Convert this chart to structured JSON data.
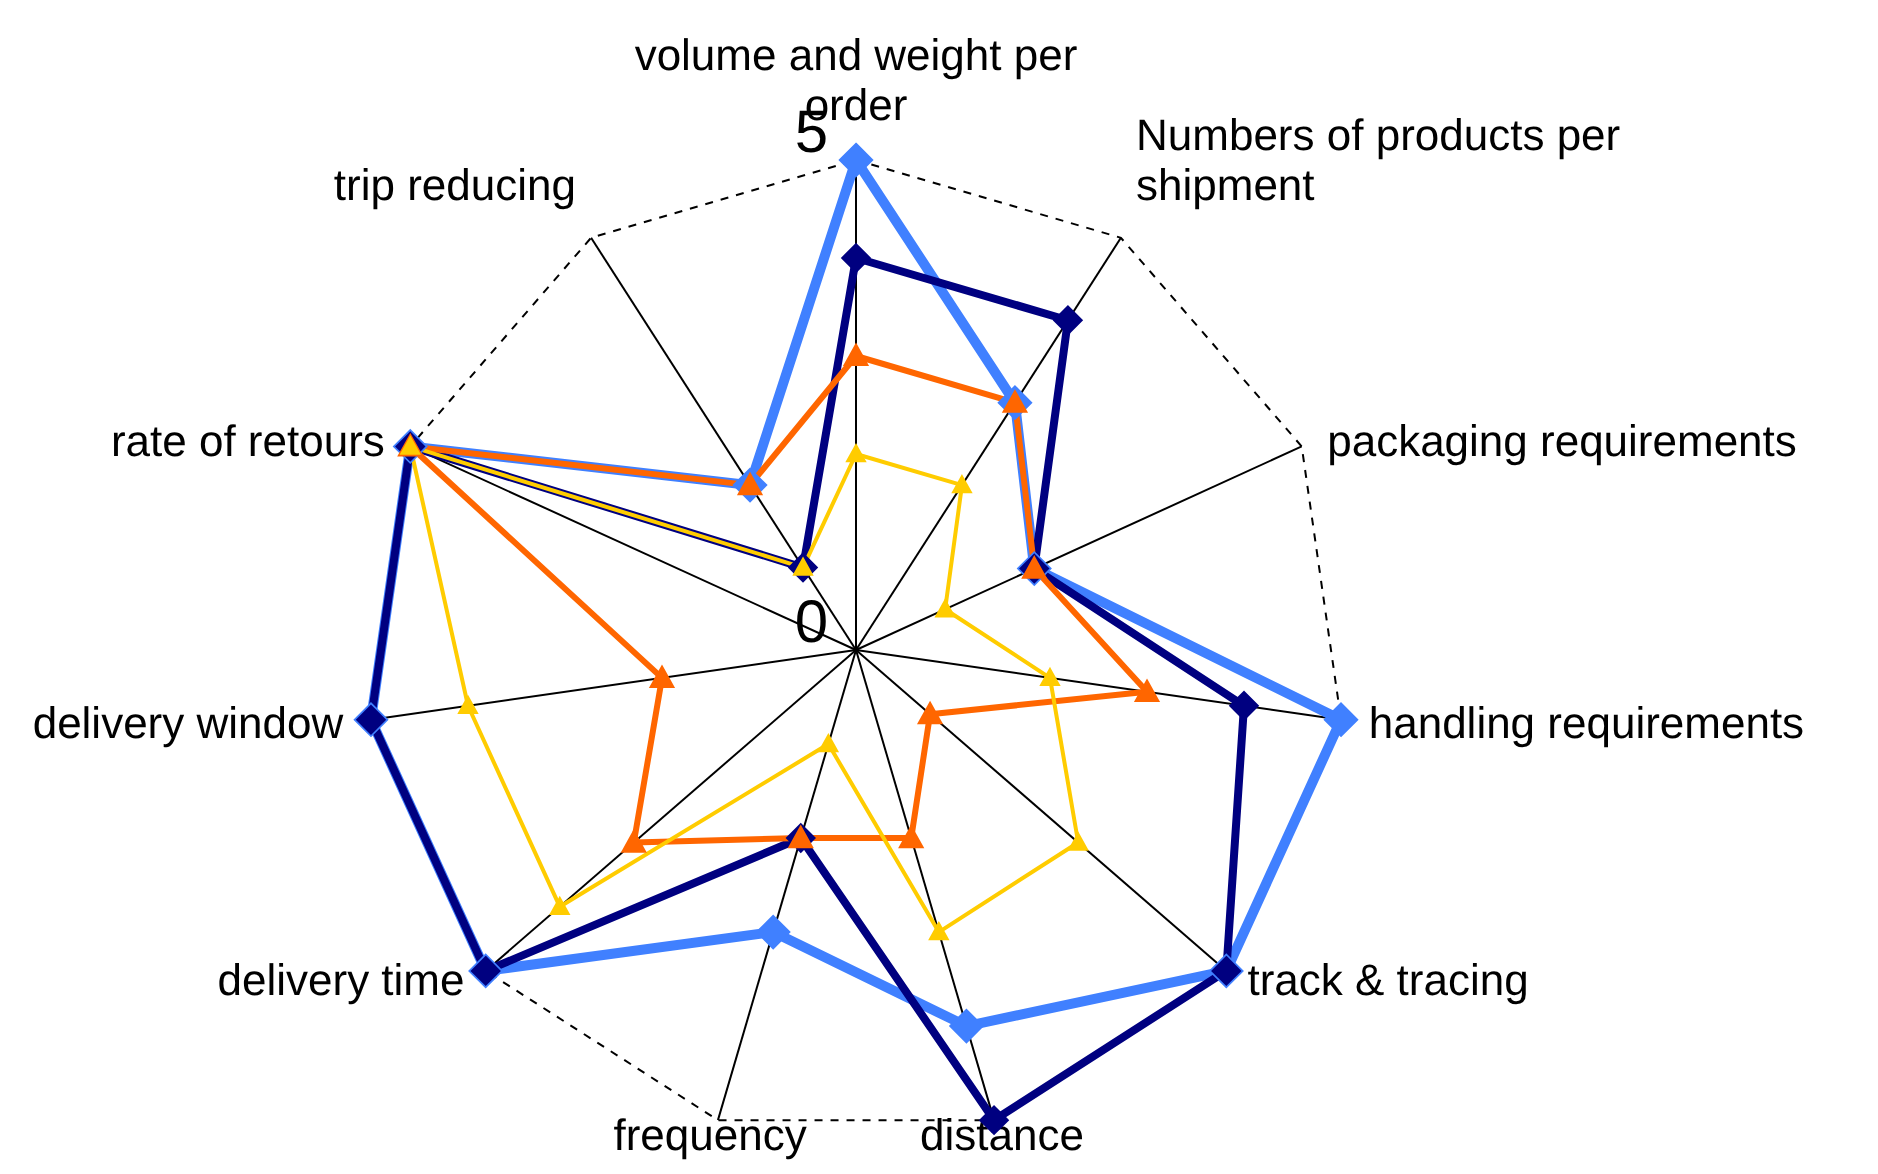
{
  "chart_data": {
    "type": "radar",
    "categories": [
      "volume and weight per order",
      "Numbers of products per shipment",
      "packaging requirements",
      "handling requirements",
      "track & tracing",
      "distance",
      "frequency",
      "delivery time",
      "delivery window",
      "rate of retours",
      "trip reducing"
    ],
    "series": [
      {
        "color": "#4080ff",
        "marker": "diamond",
        "values": [
          5,
          3,
          2,
          5,
          5,
          4,
          3,
          5,
          5,
          5,
          2
        ]
      },
      {
        "color": "#000080",
        "marker": "diamond",
        "values": [
          4,
          4,
          2,
          4,
          5,
          5,
          2,
          5,
          5,
          5,
          1
        ]
      },
      {
        "color": "#ff6600",
        "marker": "triangle",
        "values": [
          3,
          3,
          2,
          3,
          1,
          2,
          2,
          3,
          2,
          5,
          2
        ]
      },
      {
        "color": "#ffcc00",
        "marker": "triangle",
        "values": [
          2,
          2,
          1,
          2,
          3,
          3,
          1,
          4,
          4,
          5,
          1
        ]
      }
    ],
    "ylim": [
      0,
      5
    ],
    "yticks": [
      0,
      5
    ],
    "grid": true
  }
}
